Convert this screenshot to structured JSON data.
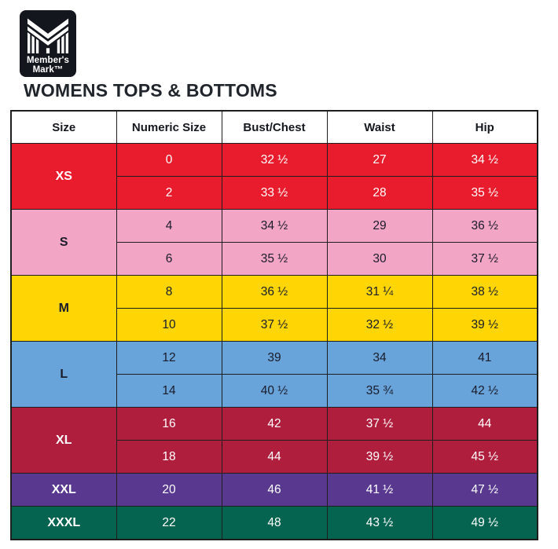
{
  "brand": {
    "logo_line1": "Member's",
    "logo_line2": "Mark™"
  },
  "title": "WOMENS TOPS & BOTTOMS",
  "colors": {
    "logo_bg": "#14161d",
    "title_text": "#20242b",
    "table_border": "#1e1e1e",
    "dark_row_text": "#1a1c2a",
    "light_row_text": "#ffffff"
  },
  "chart_data": {
    "type": "table",
    "title": "WOMENS TOPS & BOTTOMS",
    "columns": [
      "Size",
      "Numeric Size",
      "Bust/Chest",
      "Waist",
      "Hip"
    ],
    "groups": [
      {
        "size": "XS",
        "row_bg": "#e81c2c",
        "row_text": "#ffffff",
        "rows": [
          [
            "0",
            "32 ½",
            "27",
            "34 ½"
          ],
          [
            "2",
            "33 ½",
            "28",
            "35 ½"
          ]
        ]
      },
      {
        "size": "S",
        "row_bg": "#f2a5c5",
        "row_text": "#1a1c2a",
        "rows": [
          [
            "4",
            "34 ½",
            "29",
            "36 ½"
          ],
          [
            "6",
            "35 ½",
            "30",
            "37 ½"
          ]
        ]
      },
      {
        "size": "M",
        "row_bg": "#ffd504",
        "row_text": "#1a1c2a",
        "rows": [
          [
            "8",
            "36 ½",
            "31 ¼",
            "38 ½"
          ],
          [
            "10",
            "37 ½",
            "32 ½",
            "39 ½"
          ]
        ]
      },
      {
        "size": "L",
        "row_bg": "#68a3da",
        "row_text": "#1a1c2a",
        "rows": [
          [
            "12",
            "39",
            "34",
            "41"
          ],
          [
            "14",
            "40 ½",
            "35 ¾",
            "42 ½"
          ]
        ]
      },
      {
        "size": "XL",
        "row_bg": "#b01e3e",
        "row_text": "#ffffff",
        "rows": [
          [
            "16",
            "42",
            "37 ½",
            "44"
          ],
          [
            "18",
            "44",
            "39 ½",
            "45 ½"
          ]
        ]
      },
      {
        "size": "XXL",
        "row_bg": "#58398f",
        "row_text": "#ffffff",
        "rows": [
          [
            "20",
            "46",
            "41 ½",
            "47 ½"
          ]
        ]
      },
      {
        "size": "XXXL",
        "row_bg": "#046450",
        "row_text": "#ffffff",
        "rows": [
          [
            "22",
            "48",
            "43 ½",
            "49 ½"
          ]
        ]
      }
    ]
  }
}
